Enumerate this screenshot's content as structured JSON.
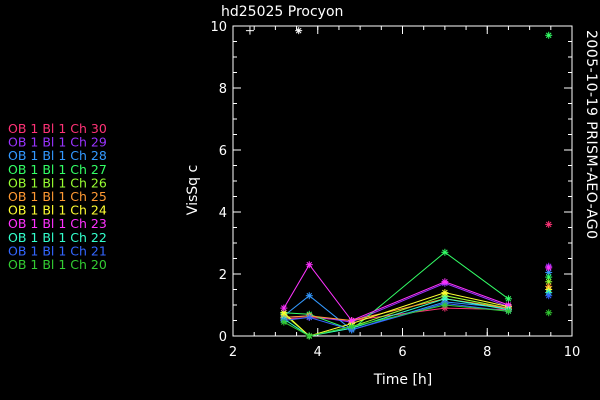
{
  "chart_data": {
    "type": "line",
    "title": "hd25025   Procyon",
    "side_label": "2005-10-19 PRISM-AEO-AG0",
    "xlabel": "Time [h]",
    "ylabel": "VisSq c",
    "xlim": [
      2,
      10
    ],
    "ylim": [
      0,
      10
    ],
    "xticks": [
      2,
      4,
      6,
      8,
      10
    ],
    "yticks": [
      0,
      2,
      4,
      6,
      8,
      10
    ],
    "grid": false,
    "legend_position": "left",
    "x": [
      3.2,
      3.8,
      4.8,
      7.0,
      8.5
    ],
    "series": [
      {
        "name": "OB 1 Bl 1 Ch 30",
        "color": "#ff3377",
        "values": [
          0.55,
          0.6,
          0.5,
          0.9,
          0.85
        ],
        "marker": 3.6
      },
      {
        "name": "OB 1 Bl 1 Ch 29",
        "color": "#9933ff",
        "values": [
          0.6,
          0.65,
          0.45,
          1.7,
          0.95
        ],
        "marker": 2.25
      },
      {
        "name": "OB 1 Bl 1 Ch 28",
        "color": "#3399ff",
        "values": [
          0.65,
          1.3,
          0.2,
          1.1,
          0.9
        ],
        "marker": 2.05
      },
      {
        "name": "OB 1 Bl 1 Ch 27",
        "color": "#33ff66",
        "values": [
          0.75,
          0.7,
          0.2,
          2.7,
          1.2
        ],
        "marker": 1.9
      },
      {
        "name": "OB 1 Bl 1 Ch 26",
        "color": "#99ff33",
        "values": [
          0.7,
          0.0,
          0.3,
          1.3,
          0.9
        ],
        "marker": 1.75
      },
      {
        "name": "OB 1 Bl 1 Ch 25",
        "color": "#ff9933",
        "values": [
          0.6,
          0.65,
          0.5,
          1.2,
          0.9
        ],
        "marker": 1.6
      },
      {
        "name": "OB 1 Bl 1 Ch 24",
        "color": "#ffff33",
        "values": [
          0.75,
          0.0,
          0.4,
          1.4,
          0.95
        ],
        "marker": 1.5
      },
      {
        "name": "OB 1 Bl 1 Ch 23",
        "color": "#ff33ff",
        "values": [
          0.9,
          2.3,
          0.5,
          1.75,
          1.0
        ],
        "marker": 2.2
      },
      {
        "name": "OB 1 Bl 1 Ch 22",
        "color": "#33ffcc",
        "values": [
          0.55,
          0.0,
          0.25,
          1.2,
          0.85
        ],
        "marker": 1.4
      },
      {
        "name": "OB 1 Bl 1 Ch 21",
        "color": "#3366ff",
        "values": [
          0.5,
          0.6,
          0.2,
          1.05,
          0.8
        ],
        "marker": 1.3
      },
      {
        "name": "OB 1 Bl 1 Ch 20",
        "color": "#33cc33",
        "values": [
          0.45,
          0.0,
          0.3,
          1.0,
          0.8
        ],
        "marker": 0.75
      }
    ],
    "marker_x": 9.45,
    "top_markers": [
      {
        "x": 2.4,
        "y": 9.85,
        "symbol": "+",
        "color": "#ffffff"
      },
      {
        "x": 3.55,
        "y": 9.85,
        "symbol": "*",
        "color": "#ffffff"
      },
      {
        "x": 9.45,
        "y": 9.7,
        "symbol": "*",
        "color": "#33ff66"
      }
    ]
  }
}
